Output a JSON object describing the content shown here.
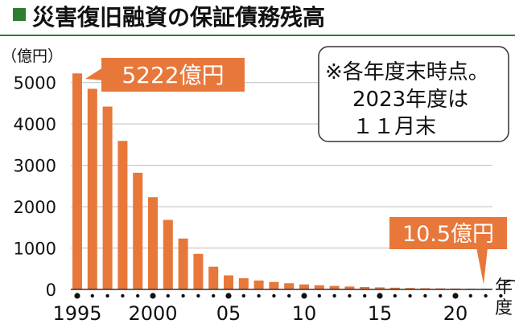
{
  "chart_data": {
    "type": "bar",
    "title": "災害復旧融資の保証債務残高",
    "title_marker_color": "#2e7d32",
    "accent_color": "#e8773a",
    "ylabel": "（億円）",
    "xlabel": "（年度）",
    "ylim": [
      0,
      5500
    ],
    "yticks": [
      0,
      1000,
      2000,
      3000,
      4000,
      5000
    ],
    "xtick_labels": [
      "1995",
      "2000",
      "05",
      "10",
      "15",
      "20"
    ],
    "x": [
      1995,
      1996,
      1997,
      1998,
      1999,
      2000,
      2001,
      2002,
      2003,
      2004,
      2005,
      2006,
      2007,
      2008,
      2009,
      2010,
      2011,
      2012,
      2013,
      2014,
      2015,
      2016,
      2017,
      2018,
      2019,
      2020,
      2021,
      2022,
      2023
    ],
    "values": [
      5222,
      4850,
      4420,
      3590,
      2820,
      2230,
      1680,
      1230,
      860,
      550,
      340,
      270,
      215,
      180,
      150,
      120,
      100,
      85,
      70,
      60,
      50,
      42,
      36,
      30,
      26,
      22,
      18,
      14,
      10.5
    ],
    "grid": true,
    "annotations": {
      "first": "5222億円",
      "last": "10.5億円"
    },
    "note": [
      "※各年度末時点。",
      "2023年度は",
      "１１月末"
    ]
  }
}
